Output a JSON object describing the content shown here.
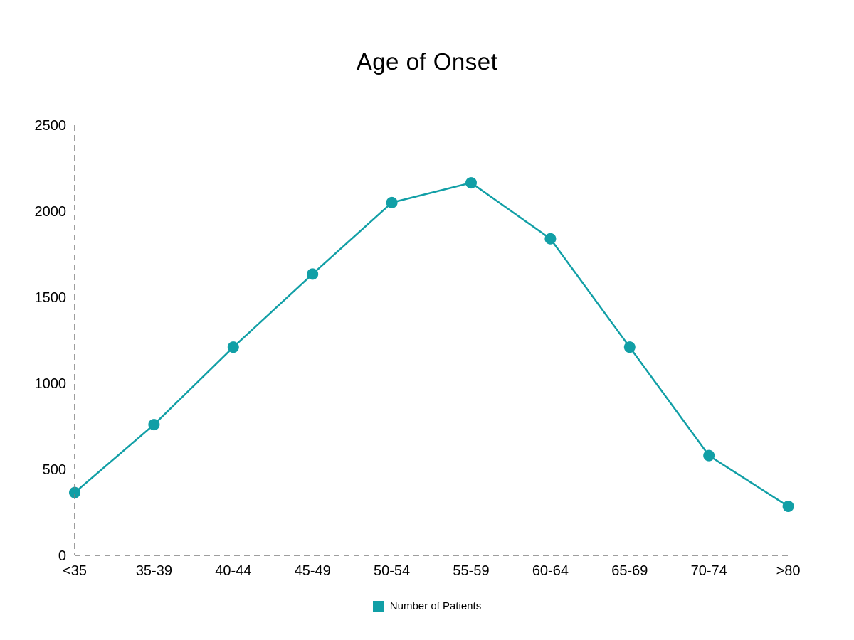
{
  "chart_data": {
    "type": "line",
    "title": "Age of Onset",
    "categories": [
      "<35",
      "35-39",
      "40-44",
      "45-49",
      "50-54",
      "55-59",
      "60-64",
      "65-69",
      "70-74",
      ">80"
    ],
    "series": [
      {
        "name": "Number of Patients",
        "values": [
          365,
          760,
          1210,
          1635,
          2050,
          2165,
          1840,
          1210,
          580,
          285
        ],
        "color": "#119fa6",
        "marker": "circle"
      }
    ],
    "y_ticks": [
      0,
      500,
      1000,
      1500,
      2000,
      2500
    ],
    "ylim": [
      0,
      2500
    ],
    "xlabel": "",
    "ylabel": "",
    "grid": false,
    "legend_position": "bottom",
    "axis_style": "dashed",
    "axis_color": "#7f7f7f",
    "text_color": "#000000",
    "background": "#ffffff"
  }
}
